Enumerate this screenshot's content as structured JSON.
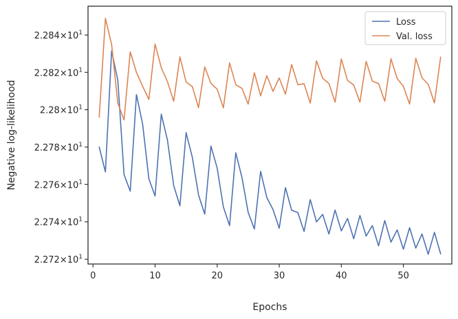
{
  "chart_data": {
    "type": "line",
    "xlabel": "Epochs",
    "ylabel": "Negative log-likelihood",
    "xlim": [
      -0.8,
      57.8
    ],
    "ylim": [
      22.7175,
      22.8555
    ],
    "y_scale": "log",
    "x_ticks": [
      0,
      10,
      20,
      30,
      40,
      50
    ],
    "y_ticks": [
      {
        "value": 22.72,
        "mantissa": "2.272",
        "exponent": "1"
      },
      {
        "value": 22.74,
        "mantissa": "2.274",
        "exponent": "1"
      },
      {
        "value": 22.76,
        "mantissa": "2.276",
        "exponent": "1"
      },
      {
        "value": 22.78,
        "mantissa": "2.278",
        "exponent": "1"
      },
      {
        "value": 22.8,
        "mantissa": "2.28",
        "exponent": "1"
      },
      {
        "value": 22.82,
        "mantissa": "2.282",
        "exponent": "1"
      },
      {
        "value": 22.84,
        "mantissa": "2.284",
        "exponent": "1"
      }
    ],
    "tick_base": "10",
    "tick_times": "×",
    "grid": false,
    "legend_position": "top-right",
    "series": [
      {
        "name": "Loss",
        "color": "#4c72b0",
        "x": [
          1,
          2,
          3,
          4,
          5,
          6,
          7,
          8,
          9,
          10,
          11,
          12,
          13,
          14,
          15,
          16,
          17,
          18,
          19,
          20,
          21,
          22,
          23,
          24,
          25,
          26,
          27,
          28,
          29,
          30,
          31,
          32,
          33,
          34,
          35,
          36,
          37,
          38,
          39,
          40,
          41,
          42,
          43,
          44,
          45,
          46,
          47,
          48,
          49,
          50,
          51,
          52,
          53,
          54,
          55,
          56
        ],
        "values": [
          22.78,
          22.7667,
          22.8315,
          22.8158,
          22.7653,
          22.7564,
          22.8081,
          22.7922,
          22.763,
          22.7538,
          22.7976,
          22.7836,
          22.7594,
          22.7486,
          22.7877,
          22.7745,
          22.7544,
          22.7441,
          22.7805,
          22.7688,
          22.748,
          22.738,
          22.7769,
          22.7637,
          22.745,
          22.7362,
          22.767,
          22.753,
          22.7466,
          22.7366,
          22.7583,
          22.7462,
          22.745,
          22.7349,
          22.7519,
          22.74,
          22.744,
          22.7335,
          22.7463,
          22.7352,
          22.7418,
          22.731,
          22.7434,
          22.7324,
          22.738,
          22.7272,
          22.7407,
          22.7292,
          22.7357,
          22.7254,
          22.7369,
          22.726,
          22.7335,
          22.7227,
          22.7344,
          22.7229
        ]
      },
      {
        "name": "Val. loss",
        "color": "#dd8452",
        "x": [
          1,
          2,
          3,
          4,
          5,
          6,
          7,
          8,
          9,
          10,
          11,
          12,
          13,
          14,
          15,
          16,
          17,
          18,
          19,
          20,
          21,
          22,
          23,
          24,
          25,
          26,
          27,
          28,
          29,
          30,
          31,
          32,
          33,
          34,
          35,
          36,
          37,
          38,
          39,
          40,
          41,
          42,
          43,
          44,
          45,
          46,
          47,
          48,
          49,
          50,
          51,
          52,
          53,
          54,
          55,
          56
        ],
        "values": [
          22.796,
          22.849,
          22.835,
          22.8035,
          22.7945,
          22.831,
          22.82,
          22.8125,
          22.8055,
          22.8352,
          22.8225,
          22.815,
          22.8045,
          22.8283,
          22.8148,
          22.8124,
          22.8011,
          22.8229,
          22.8141,
          22.811,
          22.801,
          22.8251,
          22.8134,
          22.8114,
          22.803,
          22.8198,
          22.8074,
          22.8182,
          22.8098,
          22.817,
          22.8083,
          22.8242,
          22.8134,
          22.8139,
          22.8035,
          22.8262,
          22.8168,
          22.814,
          22.804,
          22.8272,
          22.8157,
          22.8132,
          22.804,
          22.8259,
          22.8153,
          22.814,
          22.8045,
          22.8273,
          22.8167,
          22.8125,
          22.803,
          22.8275,
          22.8171,
          22.8136,
          22.8036,
          22.8282
        ]
      }
    ]
  }
}
